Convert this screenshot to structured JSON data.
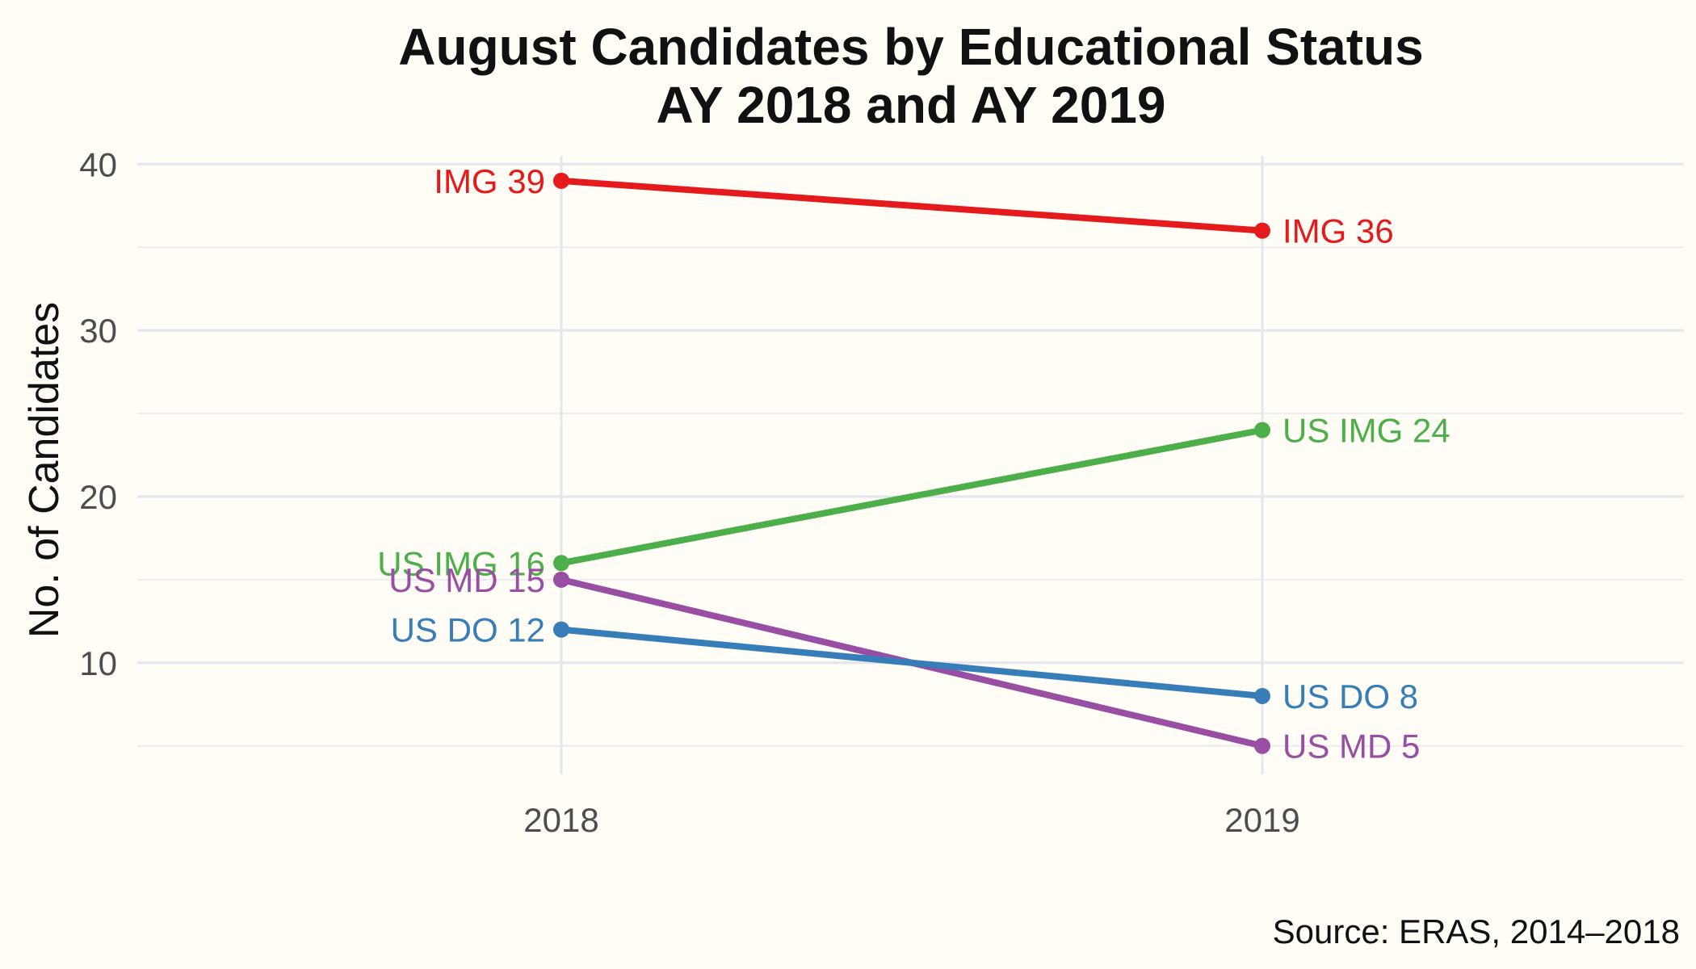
{
  "chart_data": {
    "type": "line",
    "title_lines": [
      "August Candidates by Educational Status",
      "AY 2018 and AY 2019"
    ],
    "ylabel": "No. of Candidates",
    "xlabel": "",
    "caption": "Source: ERAS, 2014–2018",
    "x": [
      "2018",
      "2019"
    ],
    "y_ticks": [
      "10",
      "20",
      "30",
      "40"
    ],
    "ylim": [
      4.5,
      40.5
    ],
    "grid": true,
    "legend": "none",
    "series": [
      {
        "name": "IMG",
        "values": [
          39,
          36
        ],
        "color": "#e41a1c",
        "labels": [
          "IMG 39",
          "IMG 36"
        ]
      },
      {
        "name": "US IMG",
        "values": [
          16,
          24
        ],
        "color": "#4daf4a",
        "labels": [
          "US IMG 16",
          "US IMG 24"
        ]
      },
      {
        "name": "US MD",
        "values": [
          15,
          5
        ],
        "color": "#984ea3",
        "labels": [
          "US MD 15",
          "US MD 5"
        ]
      },
      {
        "name": "US DO",
        "values": [
          12,
          8
        ],
        "color": "#377eb8",
        "labels": [
          "US DO 12",
          "US DO 8"
        ]
      }
    ]
  }
}
